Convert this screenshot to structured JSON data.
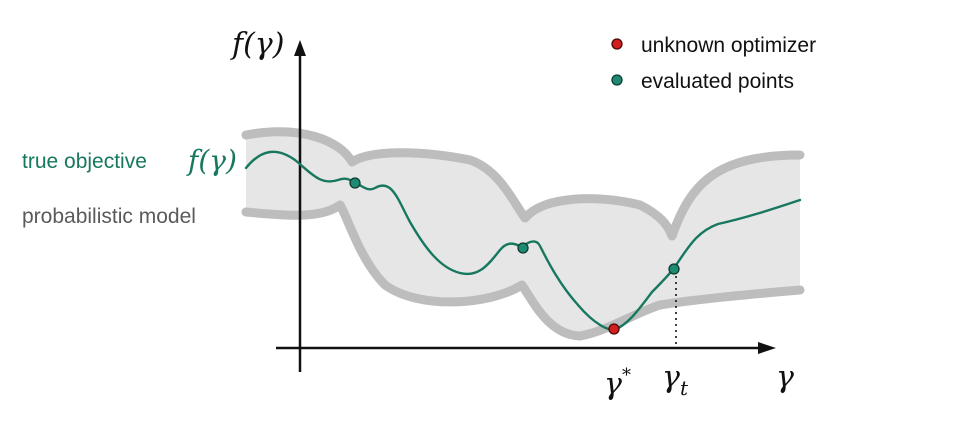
{
  "legend": {
    "optimizer_label": "unknown optimizer",
    "evaluated_label": "evaluated points"
  },
  "labels": {
    "true_objective": "true objective",
    "true_objective_symbol": "f(γ)",
    "probabilistic_model": "probabilistic model",
    "y_axis": "f(γ)",
    "x_axis": "γ",
    "optimum": "γ*",
    "optimum_base": "γ",
    "optimum_sup": "*",
    "current": "γt",
    "current_base": "γ",
    "current_sub": "t"
  },
  "colors": {
    "objective": "#17785f",
    "evaluated_point": "#1e8a72",
    "optimizer_point": "#d11f1f",
    "band_fill": "#e6e6e6",
    "band_edge": "#bdbdbd",
    "axis": "#111111",
    "model_text": "#5a5a5a"
  }
}
